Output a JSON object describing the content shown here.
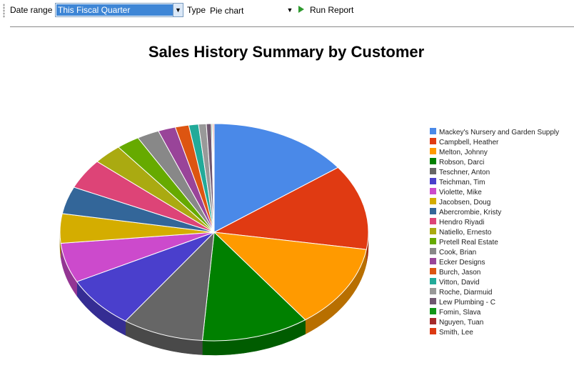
{
  "toolbar": {
    "date_range_label": "Date range",
    "date_range_value": "This Fiscal Quarter",
    "type_label": "Type",
    "type_value": "Pie chart",
    "run_report_label": "Run Report"
  },
  "chart_data": {
    "type": "pie",
    "title": "Sales History Summary by Customer",
    "legend_position": "right",
    "three_d": true,
    "series": [
      {
        "name": "Mackey's Nursery and Garden Supply",
        "value": 14.6,
        "color": "#4a89e8"
      },
      {
        "name": "Campbell, Heather",
        "value": 12.5,
        "color": "#e03a12"
      },
      {
        "name": "Melton, Johnny",
        "value": 12.2,
        "color": "#ff9a00"
      },
      {
        "name": "Robson, Darci",
        "value": 11.1,
        "color": "#008000"
      },
      {
        "name": "Teschner, Anton",
        "value": 8.4,
        "color": "#666666"
      },
      {
        "name": "Teichman, Tim",
        "value": 7.6,
        "color": "#4a3fcc"
      },
      {
        "name": "Violette, Mike",
        "value": 5.8,
        "color": "#cc4acc"
      },
      {
        "name": "Jacobsen, Doug",
        "value": 4.3,
        "color": "#d4ad00"
      },
      {
        "name": "Abercrombie, Kristy",
        "value": 4.0,
        "color": "#336699"
      },
      {
        "name": "Hendro Riyadi",
        "value": 4.4,
        "color": "#dd4477"
      },
      {
        "name": "Natiello, Ernesto",
        "value": 3.0,
        "color": "#aaaa11"
      },
      {
        "name": "Pretell Real Estate",
        "value": 2.4,
        "color": "#66aa00"
      },
      {
        "name": "Cook, Brian",
        "value": 2.3,
        "color": "#888888"
      },
      {
        "name": "Ecker Designs",
        "value": 1.8,
        "color": "#994499"
      },
      {
        "name": "Burch, Jason",
        "value": 1.4,
        "color": "#dd5511"
      },
      {
        "name": "Vitton, David",
        "value": 1.0,
        "color": "#22aa99"
      },
      {
        "name": "Roche, Diarmuid",
        "value": 0.8,
        "color": "#999999"
      },
      {
        "name": "Lew Plumbing - C",
        "value": 0.5,
        "color": "#705770"
      },
      {
        "name": "Fomin, Slava",
        "value": 0.1,
        "color": "#109618"
      },
      {
        "name": "Nguyen, Tuan",
        "value": 0.1,
        "color": "#a52a2a"
      },
      {
        "name": "Smith, Lee",
        "value": 0.1,
        "color": "#dc3912"
      }
    ]
  }
}
